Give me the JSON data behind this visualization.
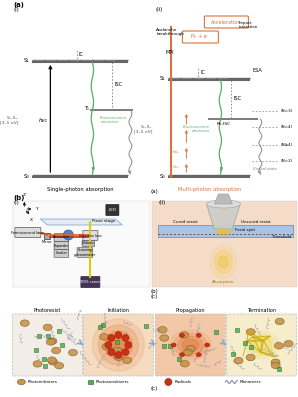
{
  "panel_a_label": "(a)",
  "panel_ai_label": "(i)",
  "panel_aii_label": "(ii)",
  "panel_b_label": "(b)",
  "panel_bi_label": "(i)",
  "panel_bii_label": "(ii)",
  "panel_c_label": "(c)",
  "single_photon_title": "Single-photon absorption",
  "multi_photon_title": "Multi-photon absorption",
  "s0_label": "S₀",
  "s1_label": "S₁",
  "ic_label": "IC",
  "isc_label": "ISC",
  "mpi_label": "MPI",
  "esa_label": "ESA",
  "fluorescence_label": "Fluorescence\nemission",
  "s0s1_label": "S₀–S₁\n[3–5 eV]",
  "hv1_label": "hν₁",
  "hv2_label": "hν₂",
  "acceleration_label": "Acceleration",
  "avalanche_label": "Avalanche\nbreakthrough",
  "impact_label": "Impact\nionization",
  "pi_e_label": "Pi· + e⁻",
  "re_isc_label": "Re-ISC",
  "photoresist_label": "Photoresist",
  "initiation_label": "Initiation",
  "propagation_label": "Propagation",
  "termination_label": "Termination",
  "photoinitiators_label": "Photoinitiators",
  "photosensitizers_label": "Photosensitizers",
  "radicals_label": "Radicals",
  "monomers_label": "Monomers",
  "led_label": "LED",
  "cmos_label": "CMOS camera",
  "objective_label": "Objective lens",
  "piezo_label": "Piezo stage",
  "femtosecond_label": "Femtosecond laser",
  "mirror_label": "Mirror",
  "attenuator_label": "Attenuator",
  "expander_label": "Expander",
  "shutter_label": "Shutter",
  "dichroic_label": "Dichroic",
  "scanning_label": "Scanning\ngalvanometer",
  "cured_resist_label": "Cured resist",
  "uncured_resist_label": "Uncured resist",
  "focal_spot_label": "Focal spot",
  "threshold_label": "Threshold",
  "absorption_label": "Absorption",
  "bg_color": "#ffffff",
  "orange_color": "#d4763b",
  "green_color": "#5aaa6a",
  "dark_orange": "#c85a10",
  "light_orange_bg": "#f5dcc8",
  "virtual_state_label": "Virtual state"
}
